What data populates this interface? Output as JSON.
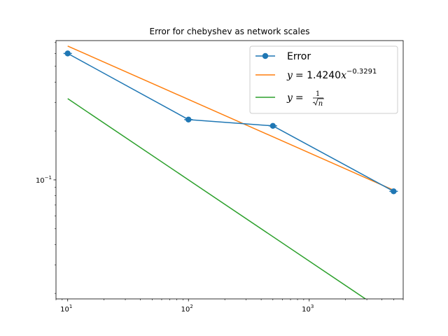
{
  "chart_data": {
    "type": "line",
    "title": "Error for chebyshev as network scales",
    "xlabel": "",
    "ylabel": "",
    "x_scale": "log",
    "y_scale": "log",
    "xlim": [
      8,
      6000
    ],
    "ylim": [
      0.0185,
      0.72
    ],
    "grid": false,
    "legend_position": "top-right",
    "x_ticks": [
      {
        "value": 10,
        "base": "10",
        "exp": "1"
      },
      {
        "value": 100,
        "base": "10",
        "exp": "2"
      },
      {
        "value": 1000,
        "base": "10",
        "exp": "3"
      }
    ],
    "y_ticks": [
      {
        "value": 0.1,
        "base": "10",
        "exp": "−1"
      }
    ],
    "series": [
      {
        "name": "Error",
        "color": "#1f77b4",
        "marker": "circle",
        "x": [
          10,
          100,
          500,
          5000
        ],
        "y": [
          0.6,
          0.235,
          0.215,
          0.085
        ],
        "error_bars_x": true
      },
      {
        "name": "y = 1.4240x^-0.3291",
        "color": "#ff7f0e",
        "marker": "none",
        "x": [
          10,
          5000
        ],
        "y": [
          0.6665,
          0.0864
        ]
      },
      {
        "name": "y = 1/sqrt(n)",
        "color": "#2ca02c",
        "marker": "none",
        "x": [
          10,
          5000
        ],
        "y": [
          0.3162,
          0.01414
        ]
      }
    ],
    "legend": {
      "error_label": "Error",
      "fit_prefix": "y",
      "fit_eq": "= 1.4240",
      "fit_var": "x",
      "fit_exp": "−0.3291",
      "inv_prefix": "y",
      "inv_eq": "=",
      "inv_num": "1",
      "inv_den": "n"
    }
  }
}
